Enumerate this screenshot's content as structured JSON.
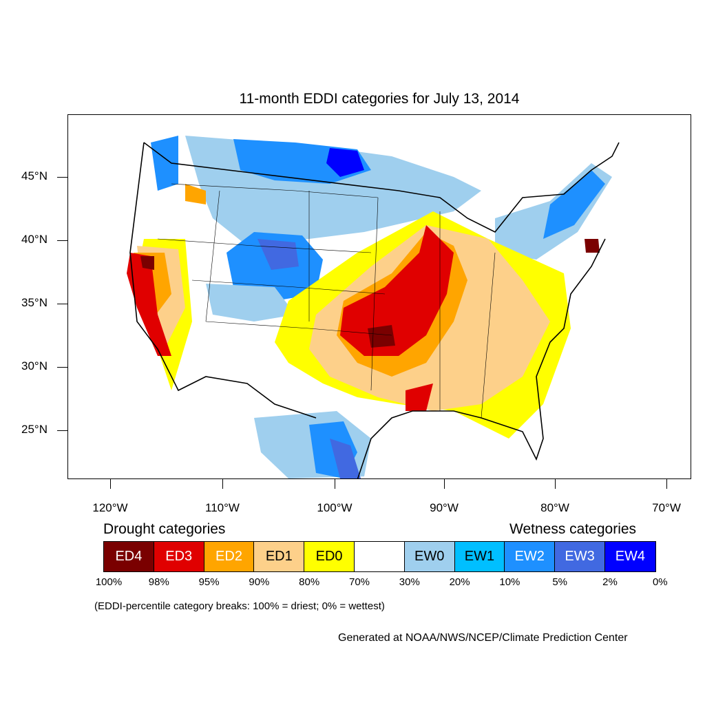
{
  "title": "11-month EDDI categories for July 13, 2014",
  "lat_labels": [
    "45°N",
    "40°N",
    "35°N",
    "30°N",
    "25°N"
  ],
  "lon_labels": [
    "120°W",
    "110°W",
    "100°W",
    "90°W",
    "80°W",
    "70°W"
  ],
  "legend": {
    "drought_heading": "Drought categories",
    "wetness_heading": "Wetness categories",
    "categories": [
      {
        "label": "ED4",
        "color": "#7a0000",
        "text_color": "#ffffff"
      },
      {
        "label": "ED3",
        "color": "#e00000",
        "text_color": "#ffffff"
      },
      {
        "label": "ED2",
        "color": "#ffa500",
        "text_color": "#ffffff"
      },
      {
        "label": "ED1",
        "color": "#fdd08a",
        "text_color": "#000000"
      },
      {
        "label": "ED0",
        "color": "#ffff00",
        "text_color": "#000000"
      },
      {
        "label": "",
        "color": "#ffffff",
        "text_color": "#000000"
      },
      {
        "label": "EW0",
        "color": "#9fcfee",
        "text_color": "#000000"
      },
      {
        "label": "EW1",
        "color": "#00bfff",
        "text_color": "#000000"
      },
      {
        "label": "EW2",
        "color": "#1e90ff",
        "text_color": "#ffffff"
      },
      {
        "label": "EW3",
        "color": "#4169e1",
        "text_color": "#ffffff"
      },
      {
        "label": "EW4",
        "color": "#0000ff",
        "text_color": "#ffffff"
      }
    ],
    "breaks": [
      "100%",
      "98%",
      "95%",
      "90%",
      "80%",
      "70%",
      "30%",
      "20%",
      "10%",
      "5%",
      "2%",
      "0%"
    ]
  },
  "note": "(EDDI-percentile category breaks: 100% = driest; 0% = wettest)",
  "credit": "Generated at NOAA/NWS/NCEP/Climate Prediction Center"
}
